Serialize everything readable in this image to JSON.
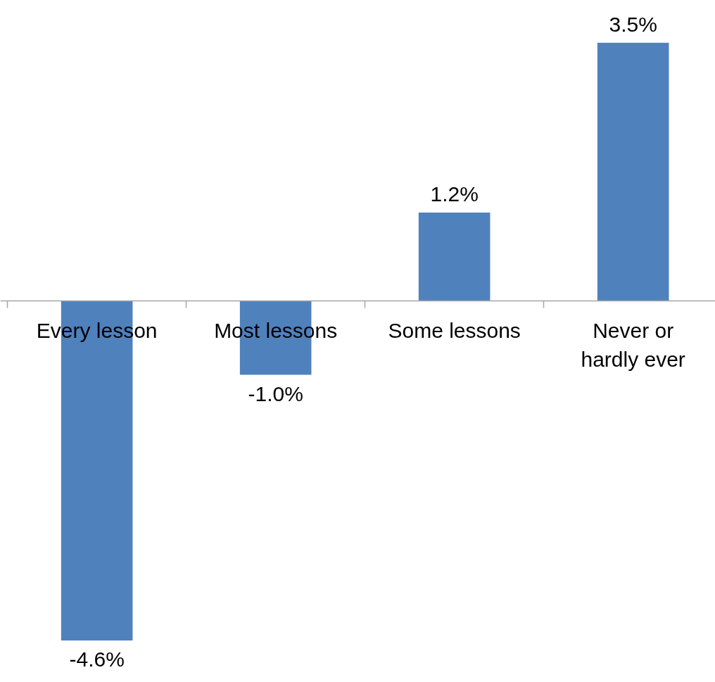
{
  "chart_data": {
    "type": "bar",
    "categories": [
      "Every lesson",
      "Most lessons",
      "Some lessons",
      "Never or hardly ever"
    ],
    "values": [
      -4.6,
      -1.0,
      1.2,
      3.5
    ],
    "value_labels": [
      "-4.6%",
      "-1.0%",
      "1.2%",
      "3.5%"
    ],
    "color": "#4f81bd",
    "grid": false
  }
}
